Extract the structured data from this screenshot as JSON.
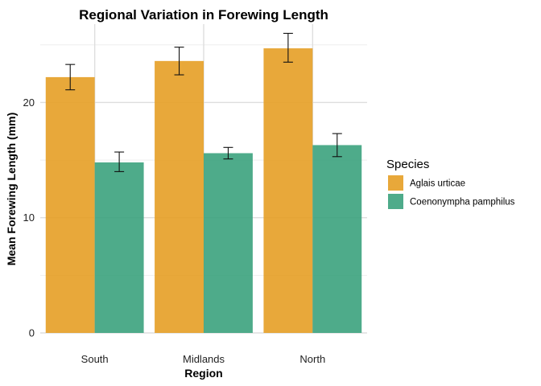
{
  "chart_data": {
    "type": "bar",
    "title": "Regional Variation in Forewing Length",
    "xlabel": "Region",
    "ylabel": "Mean Forewing Length (mm)",
    "categories": [
      "South",
      "Midlands",
      "North"
    ],
    "ylim": [
      0,
      26.8
    ],
    "yticks": [
      0,
      10,
      20
    ],
    "y_minor_ticks": [
      5,
      15,
      25
    ],
    "grid": true,
    "legend": {
      "title": "Species",
      "position": "right"
    },
    "series": [
      {
        "name": "Aglais urticae",
        "color": "#E69F25",
        "values": [
          22.2,
          23.6,
          24.7
        ],
        "error_low": [
          21.1,
          22.4,
          23.5
        ],
        "error_high": [
          23.3,
          24.8,
          26.0
        ]
      },
      {
        "name": "Coenonympha pamphilus",
        "color": "#3BA27D",
        "values": [
          14.8,
          15.6,
          16.3
        ],
        "error_low": [
          14.0,
          15.1,
          15.3
        ],
        "error_high": [
          15.7,
          16.1,
          17.3
        ]
      }
    ]
  }
}
